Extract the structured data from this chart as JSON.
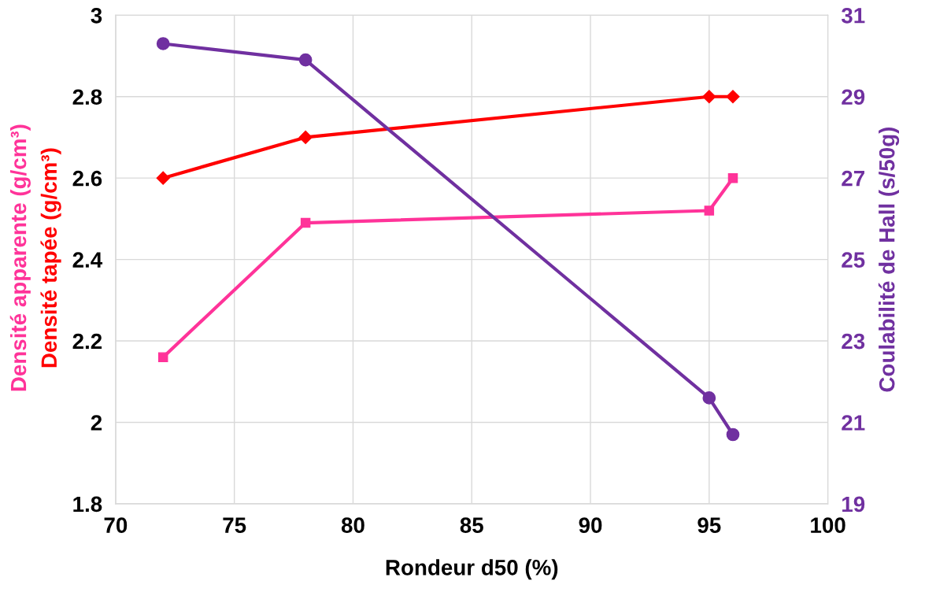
{
  "chart_data": {
    "type": "line",
    "xlabel": "Rondeur d50 (%)",
    "ylabel": [
      "Densité apparente (g/cm³)",
      "Densité tapée (g/cm³)"
    ],
    "y2label": "Coulabilité de Hall (s/50g)",
    "x": [
      72,
      78,
      95,
      96
    ],
    "series": [
      {
        "color": "#ff3399",
        "marker": "square",
        "values": [
          2.16,
          2.49,
          2.52,
          2.6
        ]
      },
      {
        "color": "#ff0000",
        "marker": "diamond",
        "values": [
          2.6,
          2.7,
          2.8,
          2.8
        ]
      },
      {
        "color": "#7030a0",
        "marker": "circle",
        "axis": "y2",
        "values": [
          30.3,
          29.9,
          21.6,
          20.7
        ]
      }
    ],
    "xlim": [
      70,
      100
    ],
    "xticks": [
      70,
      75,
      80,
      85,
      90,
      95,
      100
    ],
    "ylim": [
      1.8,
      3
    ],
    "yticks": [
      1.8,
      2,
      2.2,
      2.4,
      2.6,
      2.8,
      3
    ],
    "y2lim": [
      19,
      31
    ],
    "y2ticks": [
      19,
      21,
      23,
      25,
      27,
      29,
      31
    ],
    "grid": true,
    "legend": false
  }
}
